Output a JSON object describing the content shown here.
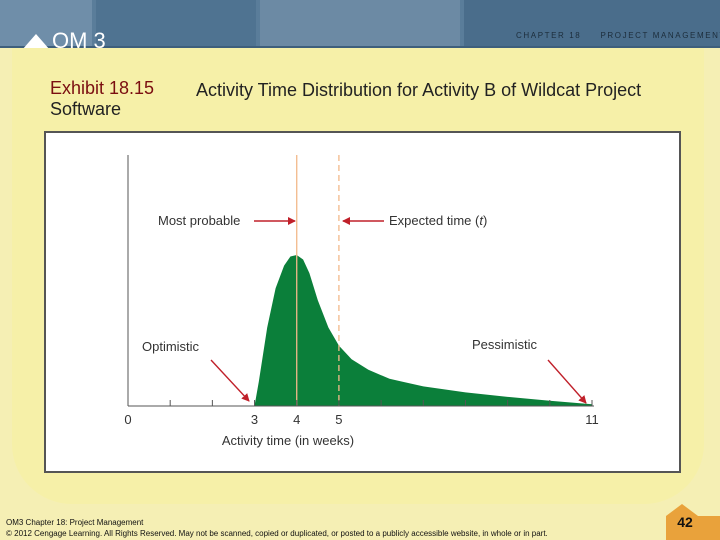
{
  "header": {
    "logo_text": "OM 3",
    "chapter_label": "CHAPTER 18",
    "chapter_title": "PROJECT MANAGEMENT"
  },
  "exhibit": {
    "number": "Exhibit 18.15",
    "number_line2": "Software",
    "caption": "Activity Time Distribution for Activity B of Wildcat Project"
  },
  "chart_data": {
    "type": "area",
    "xlabel": "Activity time (in weeks)",
    "ylabel": "",
    "xlim": [
      0,
      11
    ],
    "x_ticks": [
      0,
      1,
      2,
      3,
      4,
      5,
      6,
      7,
      8,
      9,
      10,
      11
    ],
    "x_tick_labels": [
      {
        "x": 0,
        "label": "0"
      },
      {
        "x": 3,
        "label": "3"
      },
      {
        "x": 4,
        "label": "4"
      },
      {
        "x": 5,
        "label": "5"
      },
      {
        "x": 11,
        "label": "11"
      }
    ],
    "series": [
      {
        "x": [
          3,
          3.1,
          3.3,
          3.5,
          3.7,
          3.85,
          4,
          4.15,
          4.3,
          4.5,
          4.75,
          5,
          5.3,
          5.7,
          6.2,
          7,
          8,
          9,
          10,
          11
        ],
        "y": [
          0,
          0.16,
          0.52,
          0.78,
          0.93,
          0.99,
          1.0,
          0.97,
          0.88,
          0.7,
          0.52,
          0.4,
          0.31,
          0.24,
          0.18,
          0.13,
          0.09,
          0.06,
          0.035,
          0.012
        ]
      }
    ],
    "reference_lines": [
      {
        "x": 4,
        "style": "solid"
      },
      {
        "x": 5,
        "style": "dashed"
      }
    ],
    "annotations": [
      {
        "text": "Most probable",
        "points_to_x": 4
      },
      {
        "text": "Expected time (",
        "italic_part": "t",
        "text_end": ")",
        "points_to_x": 5
      },
      {
        "text": "Optimistic",
        "points_to_x": 3
      },
      {
        "text": "Pessimistic",
        "points_to_x": 11
      }
    ],
    "colors": {
      "fill": "#0b7f3a",
      "reference": "#f2b98a",
      "arrow": "#c0202a"
    },
    "grid": false
  },
  "footer": {
    "line1": "OM3 Chapter 18: Project Management",
    "line2": "© 2012 Cengage Learning. All Rights Reserved. May not be scanned, copied or duplicated, or posted to a publicly accessible website, in whole or in part.",
    "page_number": "42"
  }
}
